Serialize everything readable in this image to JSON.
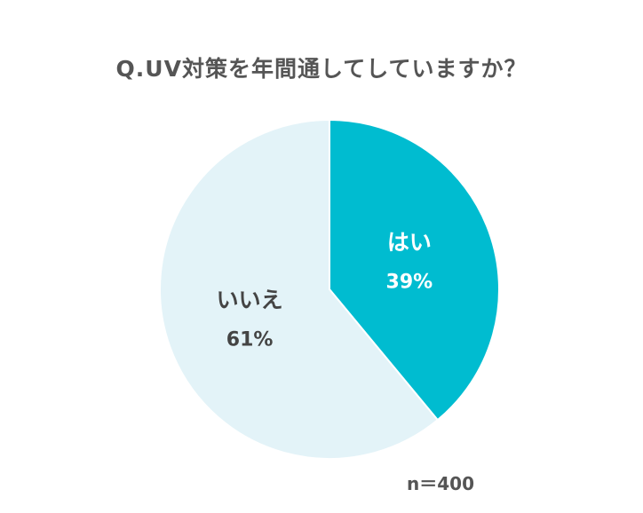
{
  "chart_data": {
    "type": "pie",
    "title": "Q.UV対策を年間通してしていますか？",
    "start_angle_deg": 0,
    "direction": "clockwise",
    "slices": [
      {
        "label": "はい",
        "value": 39,
        "value_label": "39%",
        "color": "#00BCD0",
        "text_color": "#ffffff"
      },
      {
        "label": "いいえ",
        "value": 61,
        "value_label": "61%",
        "color": "#E3F3F8",
        "text_color": "#444444"
      }
    ],
    "legend": "none",
    "sample_size": "n＝400"
  }
}
